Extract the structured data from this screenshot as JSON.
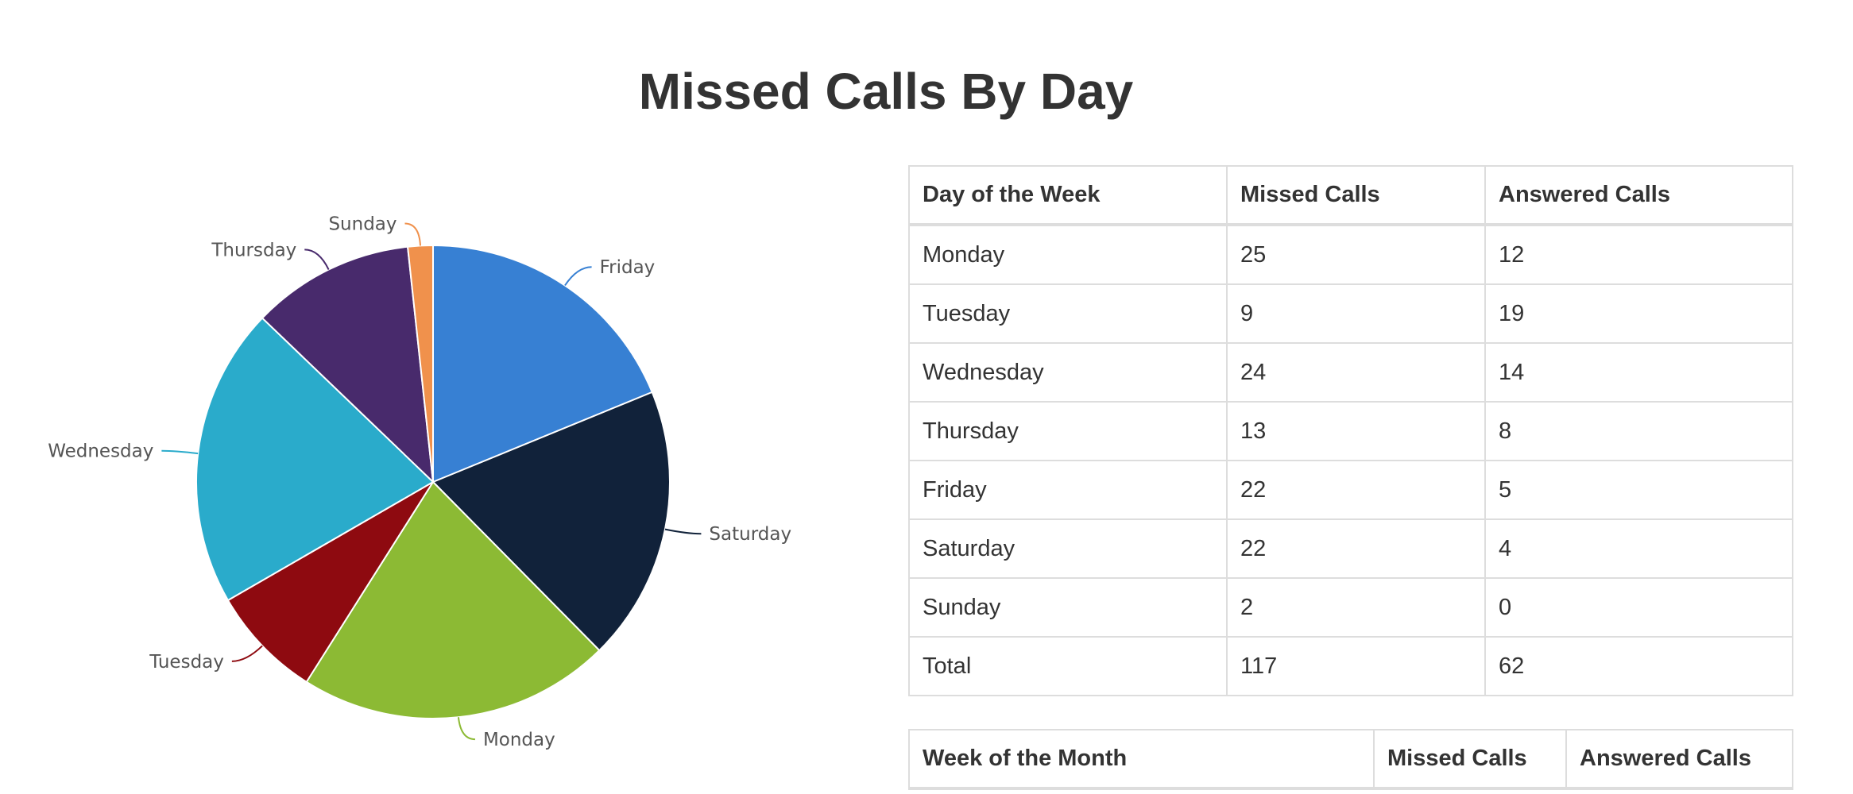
{
  "page": {
    "title": "Missed Calls By Day"
  },
  "chart_data": {
    "type": "pie",
    "title": "Missed Calls By Day",
    "categories": [
      "Friday",
      "Saturday",
      "Monday",
      "Tuesday",
      "Wednesday",
      "Thursday",
      "Sunday"
    ],
    "values": [
      22,
      22,
      25,
      9,
      24,
      13,
      2
    ],
    "colors": [
      "#3780d3",
      "#11223a",
      "#8cba34",
      "#8e0a10",
      "#2aabcb",
      "#482a6c",
      "#f0914c"
    ],
    "start": "12 o'clock",
    "direction": "clockwise"
  },
  "day_table": {
    "headers": [
      "Day of the Week",
      "Missed Calls",
      "Answered Calls"
    ],
    "rows": [
      [
        "Monday",
        "25",
        "12"
      ],
      [
        "Tuesday",
        "9",
        "19"
      ],
      [
        "Wednesday",
        "24",
        "14"
      ],
      [
        "Thursday",
        "13",
        "8"
      ],
      [
        "Friday",
        "22",
        "5"
      ],
      [
        "Saturday",
        "22",
        "4"
      ],
      [
        "Sunday",
        "2",
        "0"
      ],
      [
        "Total",
        "117",
        "62"
      ]
    ]
  },
  "week_table": {
    "headers": [
      "Week of the Month",
      "Missed Calls",
      "Answered Calls"
    ]
  }
}
